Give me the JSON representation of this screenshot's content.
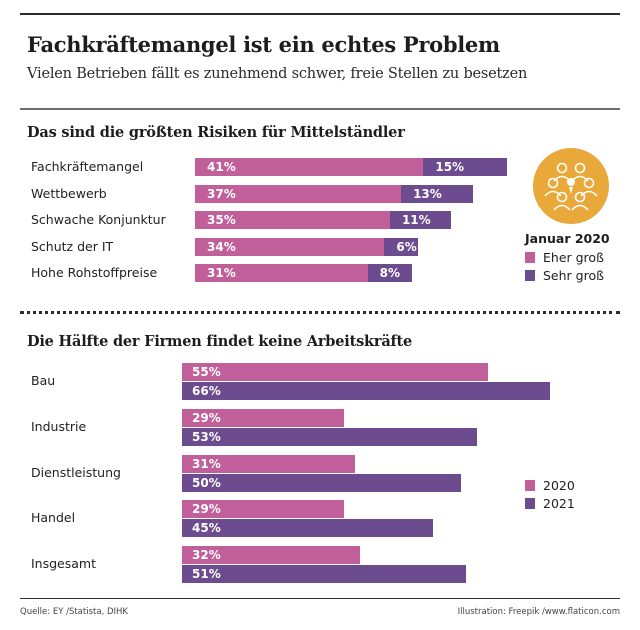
{
  "header": {
    "title": "Fachkräftemangel ist ein echtes Problem",
    "subtitle": "Vielen Betrieben fällt es zunehmend schwer, freie Stellen zu besetzen"
  },
  "colors": {
    "pink": "#c05f9a",
    "purple": "#6d4b8f",
    "icon_bg": "#e8a93a",
    "icon_fg": "#ffffff"
  },
  "icon": {
    "name": "team-meeting-icon"
  },
  "footer": {
    "source": "Quelle: EY /Statista, DIHK",
    "credit": "Illustration: Freepik /www.flaticon.com"
  },
  "chart_data": [
    {
      "type": "bar",
      "stacked": true,
      "orientation": "horizontal",
      "title": "Das sind die größten Risiken für Mittelständler",
      "legend_title": "Januar 2020",
      "legend_position": "right",
      "categories": [
        "Fachkräftemangel",
        "Wettbewerb",
        "Schwache Konjunktur",
        "Schutz der IT",
        "Hohe Rohstoffpreise"
      ],
      "series": [
        {
          "name": "Eher groß",
          "color": "#c05f9a",
          "values": [
            41,
            37,
            35,
            34,
            31
          ],
          "labels": [
            "41%",
            "37%",
            "35%",
            "34%",
            "31%"
          ]
        },
        {
          "name": "Sehr groß",
          "color": "#6d4b8f",
          "values": [
            15,
            13,
            11,
            6,
            8
          ],
          "labels": [
            "15%",
            "13%",
            "11%",
            "6%",
            "8%"
          ]
        }
      ],
      "xlabel": "",
      "ylabel": "",
      "grid": false
    },
    {
      "type": "bar",
      "stacked": false,
      "orientation": "horizontal",
      "title": "Die Hälfte der Firmen findet keine Arbeitskräfte",
      "legend_position": "right",
      "categories": [
        "Bau",
        "Industrie",
        "Dienstleistung",
        "Handel",
        "Insgesamt"
      ],
      "series": [
        {
          "name": "2020",
          "color": "#c05f9a",
          "values": [
            55,
            29,
            31,
            29,
            32
          ],
          "labels": [
            "55%",
            "29%",
            "31%",
            "29%",
            "32%"
          ]
        },
        {
          "name": "2021",
          "color": "#6d4b8f",
          "values": [
            66,
            53,
            50,
            45,
            51
          ],
          "labels": [
            "66%",
            "53%",
            "50%",
            "45%",
            "51%"
          ]
        }
      ],
      "xlabel": "",
      "ylabel": "",
      "grid": false
    }
  ]
}
